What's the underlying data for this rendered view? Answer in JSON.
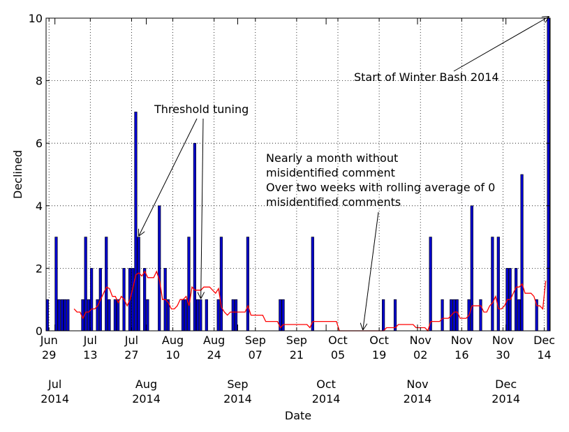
{
  "chart_data": {
    "type": "bar",
    "xlabel": "Date",
    "ylabel": "Declined",
    "ylim": [
      0,
      10
    ],
    "xlim": [
      "2014-06-28",
      "2014-12-15"
    ],
    "grid": true,
    "y_ticks": [
      0,
      2,
      4,
      6,
      8,
      10
    ],
    "x_ticks": [
      {
        "date": "2014-06-29",
        "line1": "Jun",
        "line2": "29"
      },
      {
        "date": "2014-07-13",
        "line1": "Jul",
        "line2": "13"
      },
      {
        "date": "2014-07-27",
        "line1": "Jul",
        "line2": "27"
      },
      {
        "date": "2014-08-10",
        "line1": "Aug",
        "line2": "10"
      },
      {
        "date": "2014-08-24",
        "line1": "Aug",
        "line2": "24"
      },
      {
        "date": "2014-09-07",
        "line1": "Sep",
        "line2": "07"
      },
      {
        "date": "2014-09-21",
        "line1": "Sep",
        "line2": "21"
      },
      {
        "date": "2014-10-05",
        "line1": "Oct",
        "line2": "05"
      },
      {
        "date": "2014-10-19",
        "line1": "Oct",
        "line2": "19"
      },
      {
        "date": "2014-11-02",
        "line1": "Nov",
        "line2": "02"
      },
      {
        "date": "2014-11-16",
        "line1": "Nov",
        "line2": "16"
      },
      {
        "date": "2014-11-30",
        "line1": "Nov",
        "line2": "30"
      },
      {
        "date": "2014-12-14",
        "line1": "Dec",
        "line2": "14"
      }
    ],
    "month_ticks": [
      {
        "date": "2014-07-01",
        "line1": "Jul",
        "line2": "2014"
      },
      {
        "date": "2014-08-01",
        "line1": "Aug",
        "line2": "2014"
      },
      {
        "date": "2014-09-01",
        "line1": "Sep",
        "line2": "2014"
      },
      {
        "date": "2014-10-01",
        "line1": "Oct",
        "line2": "2014"
      },
      {
        "date": "2014-11-01",
        "line1": "Nov",
        "line2": "2014"
      },
      {
        "date": "2014-12-01",
        "line1": "Dec",
        "line2": "2014"
      }
    ],
    "series": [
      {
        "type": "bar",
        "color": "#0000cc",
        "points": [
          [
            "2014-06-28",
            1
          ],
          [
            "2014-07-01",
            3
          ],
          [
            "2014-07-02",
            1
          ],
          [
            "2014-07-03",
            1
          ],
          [
            "2014-07-04",
            1
          ],
          [
            "2014-07-05",
            1
          ],
          [
            "2014-07-10",
            1
          ],
          [
            "2014-07-11",
            3
          ],
          [
            "2014-07-12",
            1
          ],
          [
            "2014-07-13",
            2
          ],
          [
            "2014-07-15",
            1
          ],
          [
            "2014-07-16",
            2
          ],
          [
            "2014-07-18",
            3
          ],
          [
            "2014-07-19",
            1
          ],
          [
            "2014-07-21",
            1
          ],
          [
            "2014-07-22",
            1
          ],
          [
            "2014-07-24",
            2
          ],
          [
            "2014-07-26",
            2
          ],
          [
            "2014-07-27",
            2
          ],
          [
            "2014-07-28",
            7
          ],
          [
            "2014-07-29",
            3
          ],
          [
            "2014-07-31",
            2
          ],
          [
            "2014-08-01",
            1
          ],
          [
            "2014-08-05",
            4
          ],
          [
            "2014-08-07",
            2
          ],
          [
            "2014-08-08",
            1
          ],
          [
            "2014-08-13",
            1
          ],
          [
            "2014-08-14",
            1
          ],
          [
            "2014-08-15",
            3
          ],
          [
            "2014-08-17",
            6
          ],
          [
            "2014-08-18",
            1
          ],
          [
            "2014-08-19",
            1
          ],
          [
            "2014-08-21",
            1
          ],
          [
            "2014-08-25",
            1
          ],
          [
            "2014-08-26",
            3
          ],
          [
            "2014-08-30",
            1
          ],
          [
            "2014-08-31",
            1
          ],
          [
            "2014-09-04",
            3
          ],
          [
            "2014-09-15",
            1
          ],
          [
            "2014-09-16",
            1
          ],
          [
            "2014-09-26",
            3
          ],
          [
            "2014-10-20",
            1
          ],
          [
            "2014-10-24",
            1
          ],
          [
            "2014-11-05",
            3
          ],
          [
            "2014-11-09",
            1
          ],
          [
            "2014-11-12",
            1
          ],
          [
            "2014-11-13",
            1
          ],
          [
            "2014-11-14",
            1
          ],
          [
            "2014-11-18",
            1
          ],
          [
            "2014-11-19",
            4
          ],
          [
            "2014-11-22",
            1
          ],
          [
            "2014-11-26",
            3
          ],
          [
            "2014-11-28",
            3
          ],
          [
            "2014-12-01",
            2
          ],
          [
            "2014-12-02",
            2
          ],
          [
            "2014-12-04",
            2
          ],
          [
            "2014-12-05",
            1
          ],
          [
            "2014-12-06",
            5
          ],
          [
            "2014-12-11",
            1
          ],
          [
            "2014-12-15",
            10
          ]
        ]
      },
      {
        "type": "line",
        "color": "#ff0000",
        "points": [
          [
            "2014-07-07",
            0.7
          ],
          [
            "2014-07-08",
            0.6
          ],
          [
            "2014-07-09",
            0.6
          ],
          [
            "2014-07-10",
            0.4
          ],
          [
            "2014-07-11",
            0.6
          ],
          [
            "2014-07-12",
            0.6
          ],
          [
            "2014-07-13",
            0.7
          ],
          [
            "2014-07-14",
            0.7
          ],
          [
            "2014-07-15",
            0.8
          ],
          [
            "2014-07-16",
            1.0
          ],
          [
            "2014-07-17",
            1.2
          ],
          [
            "2014-07-18",
            1.4
          ],
          [
            "2014-07-19",
            1.35
          ],
          [
            "2014-07-20",
            1.1
          ],
          [
            "2014-07-21",
            1.1
          ],
          [
            "2014-07-22",
            0.9
          ],
          [
            "2014-07-23",
            1.1
          ],
          [
            "2014-07-24",
            1.0
          ],
          [
            "2014-07-25",
            0.8
          ],
          [
            "2014-07-26",
            1.0
          ],
          [
            "2014-07-27",
            1.4
          ],
          [
            "2014-07-28",
            1.8
          ],
          [
            "2014-07-29",
            1.85
          ],
          [
            "2014-07-30",
            1.75
          ],
          [
            "2014-07-31",
            1.9
          ],
          [
            "2014-08-01",
            1.7
          ],
          [
            "2014-08-02",
            1.7
          ],
          [
            "2014-08-03",
            1.7
          ],
          [
            "2014-08-04",
            1.9
          ],
          [
            "2014-08-05",
            1.6
          ],
          [
            "2014-08-06",
            1.0
          ],
          [
            "2014-08-07",
            1.0
          ],
          [
            "2014-08-08",
            0.9
          ],
          [
            "2014-08-09",
            0.7
          ],
          [
            "2014-08-10",
            0.7
          ],
          [
            "2014-08-11",
            0.8
          ],
          [
            "2014-08-12",
            1.0
          ],
          [
            "2014-08-13",
            1.0
          ],
          [
            "2014-08-14",
            1.1
          ],
          [
            "2014-08-15",
            0.8
          ],
          [
            "2014-08-16",
            1.4
          ],
          [
            "2014-08-17",
            1.3
          ],
          [
            "2014-08-18",
            1.3
          ],
          [
            "2014-08-19",
            1.3
          ],
          [
            "2014-08-20",
            1.4
          ],
          [
            "2014-08-21",
            1.4
          ],
          [
            "2014-08-22",
            1.4
          ],
          [
            "2014-08-23",
            1.3
          ],
          [
            "2014-08-24",
            1.2
          ],
          [
            "2014-08-25",
            1.35
          ],
          [
            "2014-08-26",
            0.75
          ],
          [
            "2014-08-27",
            0.6
          ],
          [
            "2014-08-28",
            0.5
          ],
          [
            "2014-08-29",
            0.6
          ],
          [
            "2014-08-30",
            0.6
          ],
          [
            "2014-08-31",
            0.6
          ],
          [
            "2014-09-01",
            0.6
          ],
          [
            "2014-09-02",
            0.6
          ],
          [
            "2014-09-03",
            0.6
          ],
          [
            "2014-09-04",
            0.8
          ],
          [
            "2014-09-05",
            0.5
          ],
          [
            "2014-09-09",
            0.5
          ],
          [
            "2014-09-10",
            0.3
          ],
          [
            "2014-09-14",
            0.3
          ],
          [
            "2014-09-15",
            0.1
          ],
          [
            "2014-09-16",
            0.2
          ],
          [
            "2014-09-24",
            0.2
          ],
          [
            "2014-09-25",
            0.1
          ],
          [
            "2014-09-26",
            0.3
          ],
          [
            "2014-10-04",
            0.3
          ],
          [
            "2014-10-05",
            0.0
          ],
          [
            "2014-10-20",
            0.0
          ],
          [
            "2014-10-21",
            0.1
          ],
          [
            "2014-10-24",
            0.1
          ],
          [
            "2014-10-25",
            0.2
          ],
          [
            "2014-10-30",
            0.2
          ],
          [
            "2014-10-31",
            0.1
          ],
          [
            "2014-11-03",
            0.1
          ],
          [
            "2014-11-04",
            0.0
          ],
          [
            "2014-11-05",
            0.3
          ],
          [
            "2014-11-08",
            0.3
          ],
          [
            "2014-11-09",
            0.4
          ],
          [
            "2014-11-11",
            0.4
          ],
          [
            "2014-11-12",
            0.5
          ],
          [
            "2014-11-13",
            0.6
          ],
          [
            "2014-11-14",
            0.6
          ],
          [
            "2014-11-15",
            0.4
          ],
          [
            "2014-11-17",
            0.4
          ],
          [
            "2014-11-18",
            0.5
          ],
          [
            "2014-11-19",
            0.8
          ],
          [
            "2014-11-20",
            0.8
          ],
          [
            "2014-11-21",
            0.8
          ],
          [
            "2014-11-22",
            0.8
          ],
          [
            "2014-11-23",
            0.6
          ],
          [
            "2014-11-24",
            0.6
          ],
          [
            "2014-11-25",
            0.8
          ],
          [
            "2014-11-26",
            0.9
          ],
          [
            "2014-11-27",
            1.1
          ],
          [
            "2014-11-28",
            0.7
          ],
          [
            "2014-11-29",
            0.7
          ],
          [
            "2014-11-30",
            0.8
          ],
          [
            "2014-12-01",
            1.0
          ],
          [
            "2014-12-02",
            1.0
          ],
          [
            "2014-12-03",
            1.2
          ],
          [
            "2014-12-04",
            1.4
          ],
          [
            "2014-12-05",
            1.4
          ],
          [
            "2014-12-06",
            1.5
          ],
          [
            "2014-12-07",
            1.2
          ],
          [
            "2014-12-08",
            1.2
          ],
          [
            "2014-12-09",
            1.2
          ],
          [
            "2014-12-10",
            1.1
          ],
          [
            "2014-12-11",
            0.8
          ],
          [
            "2014-12-12",
            0.8
          ],
          [
            "2014-12-13",
            0.7
          ],
          [
            "2014-12-14",
            1.6
          ]
        ]
      }
    ],
    "annotations": [
      {
        "lines": [
          "Start of Winter Bash 2014"
        ],
        "arrows_to": [
          [
            "2014-12-15",
            10
          ]
        ]
      },
      {
        "lines": [
          "Threshold tuning"
        ],
        "arrows_to": [
          [
            "2014-07-29",
            3
          ],
          [
            "2014-08-19",
            1
          ]
        ]
      },
      {
        "lines": [
          "Nearly a month without",
          "misidentified comment",
          "Over two weeks with rolling average of 0",
          "misidentified comments"
        ],
        "arrows_to": [
          [
            "2014-10-13",
            0
          ]
        ]
      }
    ]
  }
}
